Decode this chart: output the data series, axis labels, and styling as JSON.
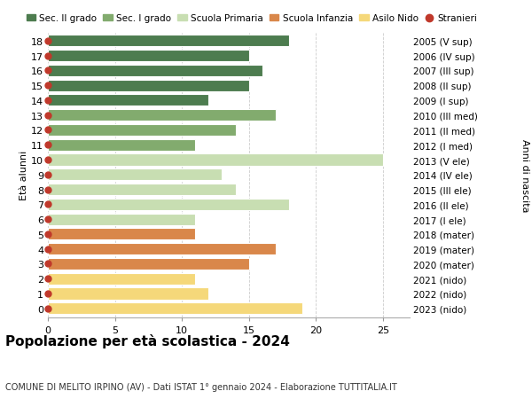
{
  "title": "Popolazione per età scolastica - 2024",
  "subtitle": "COMUNE DI MELITO IRPINO (AV) - Dati ISTAT 1° gennaio 2024 - Elaborazione TUTTITALIA.IT",
  "ylabel_left": "Età alunni",
  "ylabel_right": "Anni di nascita",
  "xlim": [
    0,
    27
  ],
  "xticks": [
    0,
    5,
    10,
    15,
    20,
    25
  ],
  "bars": [
    {
      "age": 18,
      "year": "2005 (V sup)",
      "value": 18,
      "color": "#4d7c4f"
    },
    {
      "age": 17,
      "year": "2006 (IV sup)",
      "value": 15,
      "color": "#4d7c4f"
    },
    {
      "age": 16,
      "year": "2007 (III sup)",
      "value": 16,
      "color": "#4d7c4f"
    },
    {
      "age": 15,
      "year": "2008 (II sup)",
      "value": 15,
      "color": "#4d7c4f"
    },
    {
      "age": 14,
      "year": "2009 (I sup)",
      "value": 12,
      "color": "#4d7c4f"
    },
    {
      "age": 13,
      "year": "2010 (III med)",
      "value": 17,
      "color": "#82ab6e"
    },
    {
      "age": 12,
      "year": "2011 (II med)",
      "value": 14,
      "color": "#82ab6e"
    },
    {
      "age": 11,
      "year": "2012 (I med)",
      "value": 11,
      "color": "#82ab6e"
    },
    {
      "age": 10,
      "year": "2013 (V ele)",
      "value": 25,
      "color": "#c8deb2"
    },
    {
      "age": 9,
      "year": "2014 (IV ele)",
      "value": 13,
      "color": "#c8deb2"
    },
    {
      "age": 8,
      "year": "2015 (III ele)",
      "value": 14,
      "color": "#c8deb2"
    },
    {
      "age": 7,
      "year": "2016 (II ele)",
      "value": 18,
      "color": "#c8deb2"
    },
    {
      "age": 6,
      "year": "2017 (I ele)",
      "value": 11,
      "color": "#c8deb2"
    },
    {
      "age": 5,
      "year": "2018 (mater)",
      "value": 11,
      "color": "#d9874a"
    },
    {
      "age": 4,
      "year": "2019 (mater)",
      "value": 17,
      "color": "#d9874a"
    },
    {
      "age": 3,
      "year": "2020 (mater)",
      "value": 15,
      "color": "#d9874a"
    },
    {
      "age": 2,
      "year": "2021 (nido)",
      "value": 11,
      "color": "#f5d87a"
    },
    {
      "age": 1,
      "year": "2022 (nido)",
      "value": 12,
      "color": "#f5d87a"
    },
    {
      "age": 0,
      "year": "2023 (nido)",
      "value": 19,
      "color": "#f5d87a"
    }
  ],
  "legend": [
    {
      "label": "Sec. II grado",
      "color": "#4d7c4f"
    },
    {
      "label": "Sec. I grado",
      "color": "#82ab6e"
    },
    {
      "label": "Scuola Primaria",
      "color": "#c8deb2"
    },
    {
      "label": "Scuola Infanzia",
      "color": "#d9874a"
    },
    {
      "label": "Asilo Nido",
      "color": "#f5d87a"
    },
    {
      "label": "Stranieri",
      "color": "#c0392b"
    }
  ],
  "bg_color": "#ffffff",
  "bar_height": 0.78,
  "stranieri_color": "#c0392b",
  "stranieri_size": 5,
  "grid_color": "#cccccc"
}
